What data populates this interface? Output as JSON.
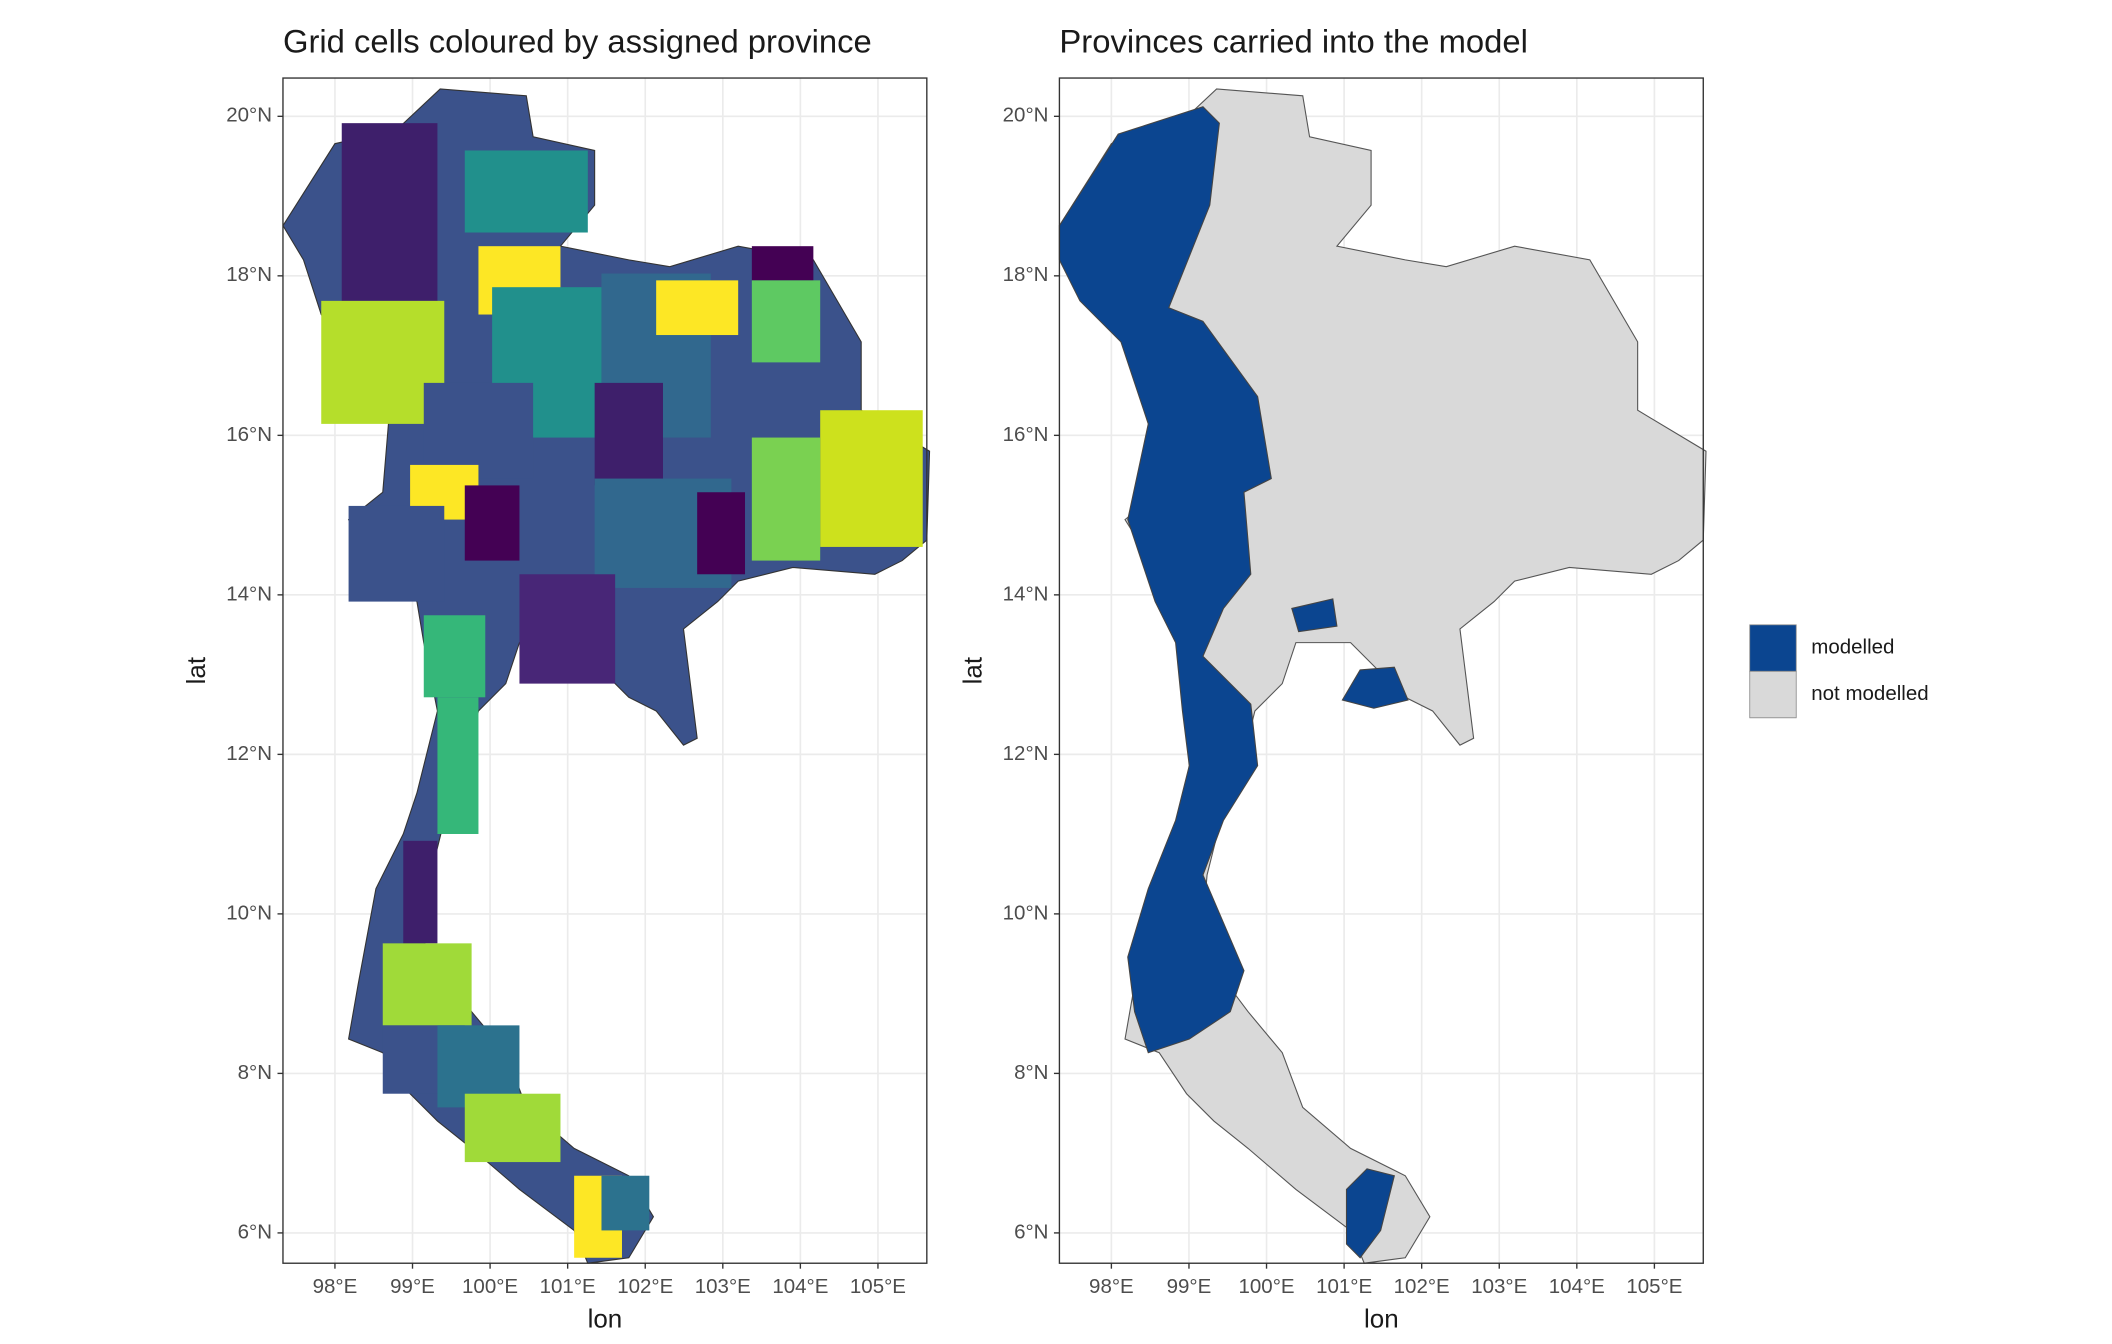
{
  "chart_data": [
    {
      "type": "map",
      "title": "Grid cells coloured by assigned province",
      "xlabel": "lon",
      "ylabel": "lat",
      "xlim": [
        97.33,
        105.63
      ],
      "ylim": [
        5.62,
        20.48
      ],
      "xticks": [
        {
          "value": 98,
          "label": "98°E"
        },
        {
          "value": 99,
          "label": "99°E"
        },
        {
          "value": 100,
          "label": "100°E"
        },
        {
          "value": 101,
          "label": "101°E"
        },
        {
          "value": 102,
          "label": "102°E"
        },
        {
          "value": 103,
          "label": "103°E"
        },
        {
          "value": 104,
          "label": "104°E"
        },
        {
          "value": 105,
          "label": "105°E"
        }
      ],
      "yticks": [
        {
          "value": 6,
          "label": "6°N"
        },
        {
          "value": 8,
          "label": "8°N"
        },
        {
          "value": 10,
          "label": "10°N"
        },
        {
          "value": 12,
          "label": "12°N"
        },
        {
          "value": 14,
          "label": "14°N"
        },
        {
          "value": 16,
          "label": "16°N"
        },
        {
          "value": 18,
          "label": "18°N"
        },
        {
          "value": 20,
          "label": "20°N"
        }
      ],
      "grid": true
    },
    {
      "type": "map",
      "title": "Provinces carried into the model",
      "xlabel": "lon",
      "ylabel": "lat",
      "xlim": [
        97.33,
        105.63
      ],
      "ylim": [
        5.62,
        20.48
      ],
      "xticks": [
        {
          "value": 98,
          "label": "98°E"
        },
        {
          "value": 99,
          "label": "99°E"
        },
        {
          "value": 100,
          "label": "100°E"
        },
        {
          "value": 101,
          "label": "101°E"
        },
        {
          "value": 102,
          "label": "102°E"
        },
        {
          "value": 103,
          "label": "103°E"
        },
        {
          "value": 104,
          "label": "104°E"
        },
        {
          "value": 105,
          "label": "105°E"
        }
      ],
      "yticks": [
        {
          "value": 6,
          "label": "6°N"
        },
        {
          "value": 8,
          "label": "8°N"
        },
        {
          "value": 10,
          "label": "10°N"
        },
        {
          "value": 12,
          "label": "12°N"
        },
        {
          "value": 14,
          "label": "14°N"
        },
        {
          "value": 16,
          "label": "16°N"
        },
        {
          "value": 18,
          "label": "18°N"
        },
        {
          "value": 20,
          "label": "20°N"
        }
      ],
      "grid": true,
      "legend": [
        {
          "name": "modelled",
          "color": "#0b4590"
        },
        {
          "name": "not modelled",
          "color": "#d9d9d9"
        }
      ],
      "legend_position": "right"
    }
  ]
}
